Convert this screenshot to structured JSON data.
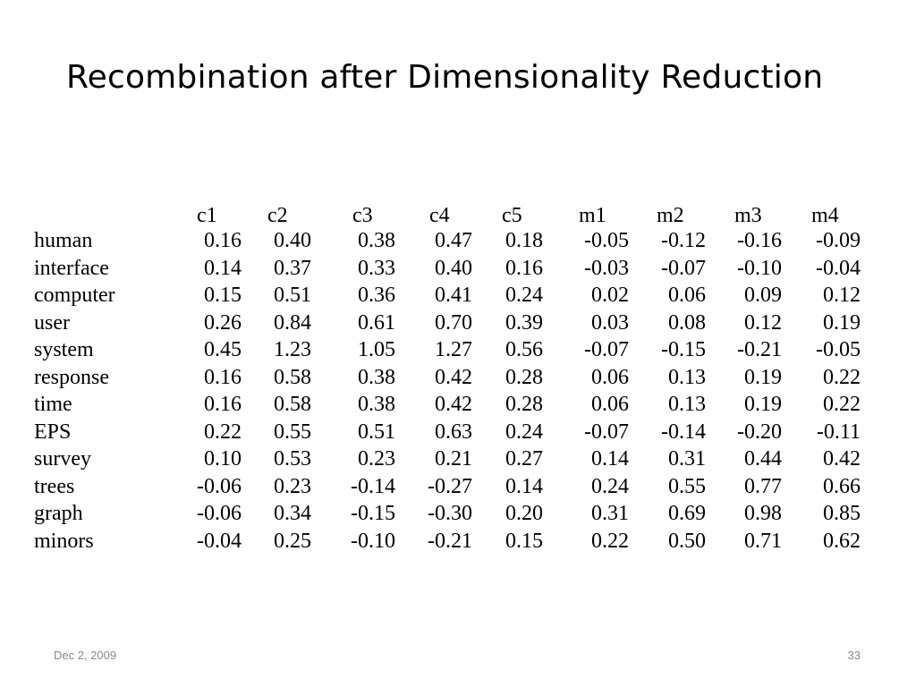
{
  "slide": {
    "title": "Recombination after Dimensionality Reduction",
    "footer_date": "Dec 2, 2009",
    "page_number": "33"
  },
  "table": {
    "columns": [
      "c1",
      "c2",
      "c3",
      "c4",
      "c5",
      "m1",
      "m2",
      "m3",
      "m4"
    ],
    "rows": [
      {
        "label": "human",
        "values": [
          "0.16",
          "0.40",
          "0.38",
          "0.47",
          "0.18",
          "-0.05",
          "-0.12",
          "-0.16",
          "-0.09"
        ]
      },
      {
        "label": "interface",
        "values": [
          "0.14",
          "0.37",
          "0.33",
          "0.40",
          "0.16",
          "-0.03",
          "-0.07",
          "-0.10",
          "-0.04"
        ]
      },
      {
        "label": "computer",
        "values": [
          "0.15",
          "0.51",
          "0.36",
          "0.41",
          "0.24",
          "0.02",
          "0.06",
          "0.09",
          "0.12"
        ]
      },
      {
        "label": "user",
        "values": [
          "0.26",
          "0.84",
          "0.61",
          "0.70",
          "0.39",
          "0.03",
          "0.08",
          "0.12",
          "0.19"
        ]
      },
      {
        "label": "system",
        "values": [
          "0.45",
          "1.23",
          "1.05",
          "1.27",
          "0.56",
          "-0.07",
          "-0.15",
          "-0.21",
          "-0.05"
        ]
      },
      {
        "label": "response",
        "values": [
          "0.16",
          "0.58",
          "0.38",
          "0.42",
          "0.28",
          "0.06",
          "0.13",
          "0.19",
          "0.22"
        ]
      },
      {
        "label": "time",
        "values": [
          "0.16",
          "0.58",
          "0.38",
          "0.42",
          "0.28",
          "0.06",
          "0.13",
          "0.19",
          "0.22"
        ]
      },
      {
        "label": "EPS",
        "values": [
          "0.22",
          "0.55",
          "0.51",
          "0.63",
          "0.24",
          "-0.07",
          "-0.14",
          "-0.20",
          "-0.11"
        ]
      },
      {
        "label": "survey",
        "values": [
          "0.10",
          "0.53",
          "0.23",
          "0.21",
          "0.27",
          "0.14",
          "0.31",
          "0.44",
          "0.42"
        ]
      },
      {
        "label": "trees",
        "values": [
          "-0.06",
          "0.23",
          "-0.14",
          "-0.27",
          "0.14",
          "0.24",
          "0.55",
          "0.77",
          "0.66"
        ]
      },
      {
        "label": "graph",
        "values": [
          "-0.06",
          "0.34",
          "-0.15",
          "-0.30",
          "0.20",
          "0.31",
          "0.69",
          "0.98",
          "0.85"
        ]
      },
      {
        "label": "minors",
        "values": [
          "-0.04",
          "0.25",
          "-0.10",
          "-0.21",
          "0.15",
          "0.22",
          "0.50",
          "0.71",
          "0.62"
        ]
      }
    ]
  }
}
